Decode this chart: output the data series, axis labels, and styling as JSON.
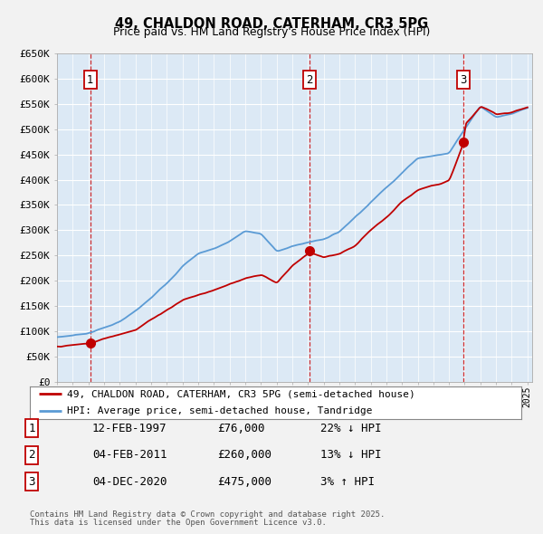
{
  "title": "49, CHALDON ROAD, CATERHAM, CR3 5PG",
  "subtitle": "Price paid vs. HM Land Registry's House Price Index (HPI)",
  "legend_line1": "49, CHALDON ROAD, CATERHAM, CR3 5PG (semi-detached house)",
  "legend_line2": "HPI: Average price, semi-detached house, Tandridge",
  "footer1": "Contains HM Land Registry data © Crown copyright and database right 2025.",
  "footer2": "This data is licensed under the Open Government Licence v3.0.",
  "ylim": [
    0,
    650000
  ],
  "yticks": [
    0,
    50000,
    100000,
    150000,
    200000,
    250000,
    300000,
    350000,
    400000,
    450000,
    500000,
    550000,
    600000,
    650000
  ],
  "ytick_labels": [
    "£0",
    "£50K",
    "£100K",
    "£150K",
    "£200K",
    "£250K",
    "£300K",
    "£350K",
    "£400K",
    "£450K",
    "£500K",
    "£550K",
    "£600K",
    "£650K"
  ],
  "sales": [
    {
      "label": "1",
      "date_str": "12-FEB-1997",
      "price": 76000,
      "pct": "22%",
      "dir": "↓",
      "year": 1997.12
    },
    {
      "label": "2",
      "date_str": "04-FEB-2011",
      "price": 260000,
      "pct": "13%",
      "dir": "↓",
      "year": 2011.09
    },
    {
      "label": "3",
      "date_str": "04-DEC-2020",
      "price": 475000,
      "pct": "3%",
      "dir": "↑",
      "year": 2020.92
    }
  ],
  "hpi_color": "#5b9bd5",
  "price_color": "#c00000",
  "plot_bg": "#dce9f5",
  "grid_color": "#ffffff",
  "fig_bg": "#f2f2f2",
  "marker_box_color": "#c00000",
  "hpi_anchors_years": [
    1995,
    1996,
    1997,
    1998,
    1999,
    2000,
    2001,
    2002,
    2003,
    2004,
    2005,
    2006,
    2007,
    2008,
    2009,
    2010,
    2011,
    2012,
    2013,
    2014,
    2015,
    2016,
    2017,
    2018,
    2019,
    2020,
    2021,
    2022,
    2023,
    2024,
    2025
  ],
  "hpi_anchors_vals": [
    88000,
    92000,
    97000,
    108000,
    120000,
    140000,
    165000,
    195000,
    230000,
    255000,
    265000,
    280000,
    300000,
    295000,
    260000,
    270000,
    278000,
    285000,
    300000,
    330000,
    360000,
    390000,
    420000,
    450000,
    455000,
    460000,
    510000,
    555000,
    535000,
    540000,
    550000
  ],
  "price_anchors_years": [
    1995,
    1997.12,
    2000,
    2003,
    2005,
    2007,
    2008,
    2009,
    2010,
    2011.09,
    2012,
    2013,
    2014,
    2015,
    2016,
    2017,
    2018,
    2019,
    2020,
    2020.92,
    2021,
    2022,
    2023,
    2024,
    2025
  ],
  "price_anchors_vals": [
    70000,
    76000,
    105000,
    165000,
    185000,
    210000,
    215000,
    200000,
    235000,
    260000,
    250000,
    255000,
    270000,
    300000,
    325000,
    355000,
    380000,
    390000,
    400000,
    475000,
    510000,
    545000,
    530000,
    535000,
    545000
  ]
}
